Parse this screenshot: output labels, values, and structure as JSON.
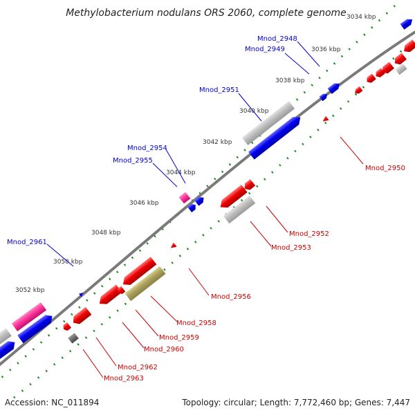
{
  "title": "Methylobacterium nodulans ORS 2060, complete genome",
  "footer": {
    "accession": "Accession: NC_011894",
    "summary": "Topology: circular; Length: 7,772,460 bp; Genes: 7,447"
  },
  "ticks": [
    "3034 kbp",
    "3036 kbp",
    "3038 kbp",
    "3040 kbp",
    "3042 kbp",
    "3044 kbp",
    "3046 kbp",
    "3048 kbp",
    "3050 kbp",
    "3052 kbp"
  ],
  "genes_forward": [
    "Mnod_2948",
    "Mnod_2949",
    "Mnod_2951",
    "Mnod_2954",
    "Mnod_2955",
    "Mnod_2961"
  ],
  "genes_reverse": [
    "Mnod_2950",
    "Mnod_2952",
    "Mnod_2953",
    "Mnod_2956",
    "Mnod_2958",
    "Mnod_2959",
    "Mnod_2960",
    "Mnod_2962",
    "Mnod_2963"
  ],
  "colors": {
    "backbone": "#7a7a7a",
    "forward_gene": "#0000ee",
    "reverse_gene": "#ee0000",
    "rna_gene": "#ff3399",
    "pseudo_gene": "#b5b5b5",
    "other_gene": "#aaa060",
    "dark_gene": "#555555",
    "tick_dots": "#1a8a1a"
  }
}
